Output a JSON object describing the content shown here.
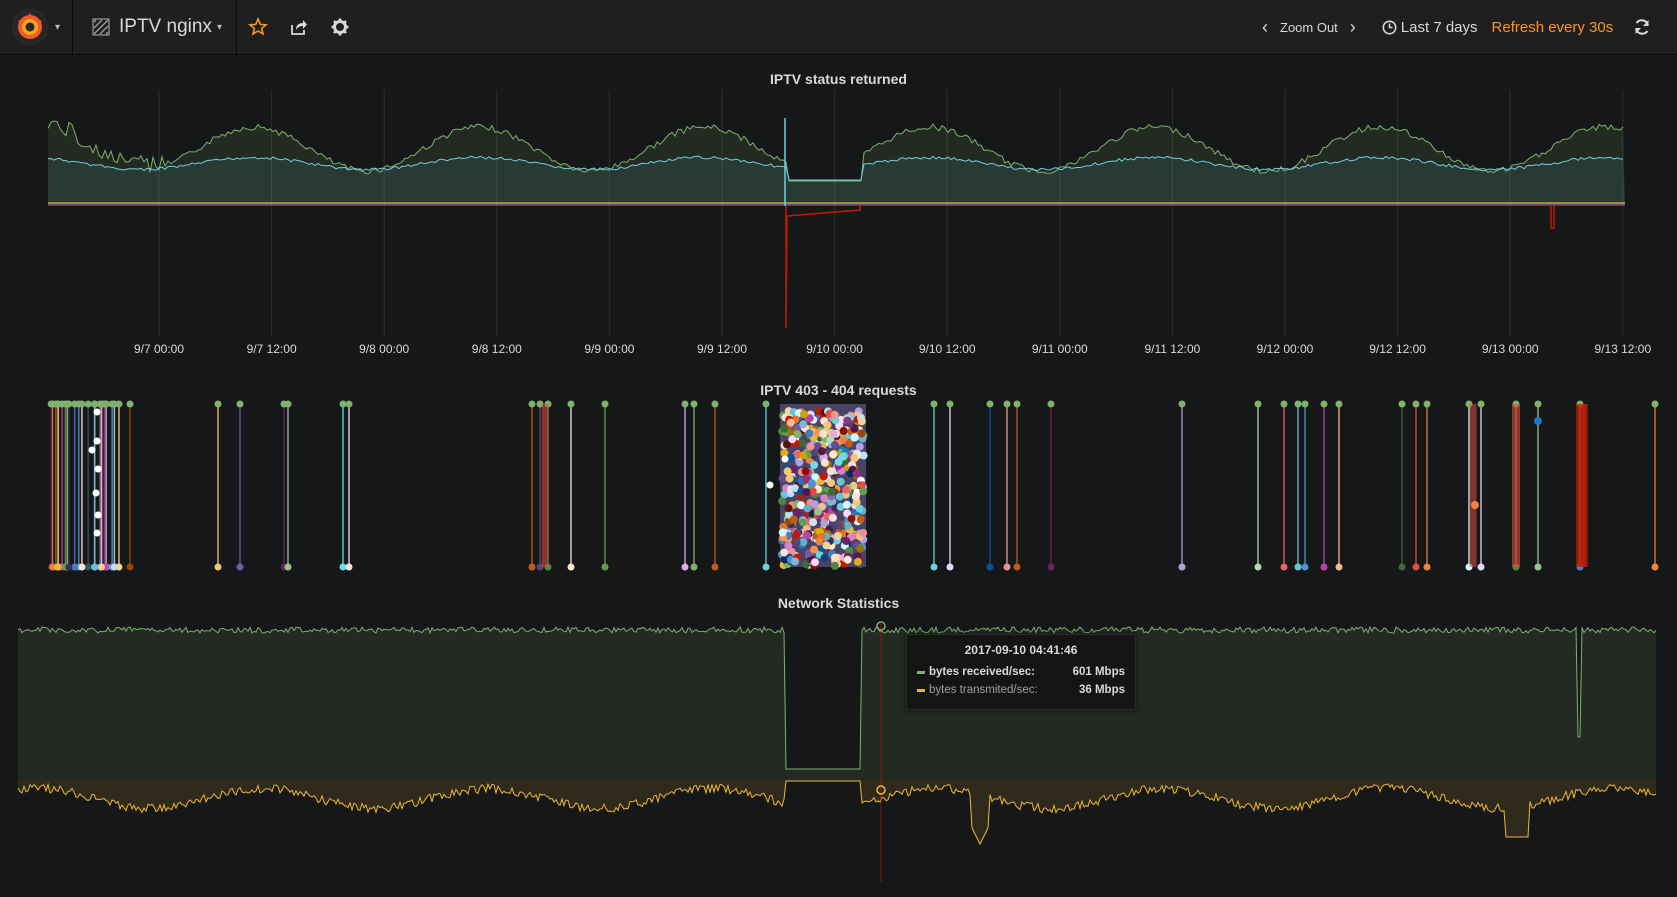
{
  "navbar": {
    "dashboard_name": "IPTV nginx",
    "icons": {
      "star": "star-icon",
      "share": "share-icon",
      "settings": "gear-icon"
    }
  },
  "timepicker": {
    "zoom_out_label": "Zoom Out",
    "range_label": "Last 7 days",
    "refresh_label": "Refresh every 30s"
  },
  "colors": {
    "green": "#7eb26d",
    "blue": "#6ed0e0",
    "yellow": "#eab839",
    "red": "#bf1b00",
    "accent_orange": "#f79520"
  },
  "panels": {
    "status": {
      "title": "IPTV status returned",
      "x_ticks": [
        "9/7 00:00",
        "9/7 12:00",
        "9/8 00:00",
        "9/8 12:00",
        "9/9 00:00",
        "9/9 12:00",
        "9/10 00:00",
        "9/10 12:00",
        "9/11 00:00",
        "9/11 12:00",
        "9/12 00:00",
        "9/12 12:00",
        "9/13 00:00",
        "9/13 12:00"
      ]
    },
    "errors": {
      "title": "IPTV 403 - 404 requests"
    },
    "network": {
      "title": "Network Statistics",
      "tooltip": {
        "time": "2017-09-10 04:41:46",
        "rows": [
          {
            "name": "bytes received/sec:",
            "value": "601 Mbps",
            "color": "#7eb26d"
          },
          {
            "name": "bytes transmited/sec:",
            "value": "36 Mbps",
            "color": "#eab839"
          }
        ]
      }
    }
  }
}
